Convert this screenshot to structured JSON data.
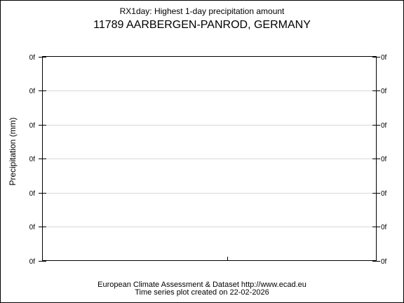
{
  "title": "RX1day: Highest 1-day precipitation amount",
  "subtitle": "11789 AARBERGEN-PANROD, GERMANY",
  "footer": {
    "line1": "European Climate Assessment & Dataset  http://www.ecad.eu",
    "line2": "Time series plot created on 22-02-2026"
  },
  "chart_data": {
    "type": "line",
    "title": "RX1day: Highest 1-day precipitation amount",
    "subtitle": "11789 AARBERGEN-PANROD, GERMANY",
    "xlabel": "",
    "ylabel": "Precipitation (mm)",
    "y_tick_labels": [
      "0f",
      "0f",
      "0f",
      "0f",
      "0f",
      "0f",
      "0f"
    ],
    "series": [],
    "grid": true,
    "legend": "none"
  }
}
